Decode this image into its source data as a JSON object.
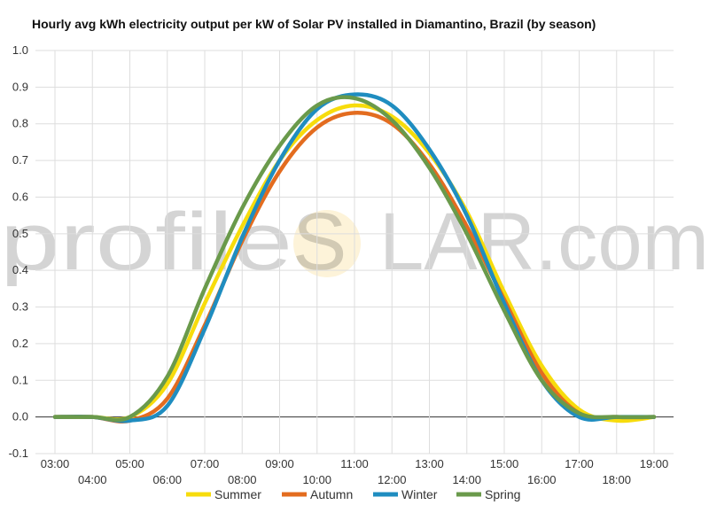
{
  "title": "Hourly avg kWh electricity output per kW of Solar PV installed in Diamantino, Brazil (by season)",
  "watermark": {
    "left": "profile",
    "mid": "S",
    "right": "LAR.com",
    "sun_color": "#fdf3d9"
  },
  "chart_data": {
    "type": "line",
    "title": "Hourly avg kWh electricity output per kW of Solar PV installed in Diamantino, Brazil (by season)",
    "x": [
      "03:00",
      "04:00",
      "05:00",
      "06:00",
      "07:00",
      "08:00",
      "09:00",
      "10:00",
      "11:00",
      "12:00",
      "13:00",
      "14:00",
      "15:00",
      "16:00",
      "17:00",
      "18:00",
      "19:00"
    ],
    "ylim": [
      -0.1,
      1.0
    ],
    "yticks": [
      "-0.1",
      "0.0",
      "0.1",
      "0.2",
      "0.3",
      "0.4",
      "0.5",
      "0.6",
      "0.7",
      "0.8",
      "0.9",
      "1.0"
    ],
    "grid": true,
    "legend_position": "bottom",
    "series": [
      {
        "name": "Summer",
        "color": "#f7dc0c",
        "values": [
          0,
          0,
          0,
          0.09,
          0.31,
          0.52,
          0.7,
          0.81,
          0.85,
          0.82,
          0.72,
          0.56,
          0.34,
          0.14,
          0.02,
          -0.01,
          0
        ]
      },
      {
        "name": "Autumn",
        "color": "#e36c1f",
        "values": [
          0,
          0,
          -0.01,
          0.05,
          0.25,
          0.48,
          0.67,
          0.79,
          0.83,
          0.8,
          0.69,
          0.52,
          0.32,
          0.12,
          0.01,
          0,
          0
        ]
      },
      {
        "name": "Winter",
        "color": "#1f8dc0",
        "values": [
          0,
          0,
          -0.01,
          0.03,
          0.24,
          0.49,
          0.7,
          0.84,
          0.88,
          0.85,
          0.73,
          0.55,
          0.31,
          0.1,
          0,
          0,
          0
        ]
      },
      {
        "name": "Spring",
        "color": "#6a9a4b",
        "values": [
          0,
          0,
          0,
          0.11,
          0.35,
          0.57,
          0.74,
          0.85,
          0.87,
          0.81,
          0.68,
          0.5,
          0.29,
          0.1,
          0.01,
          0,
          0
        ]
      }
    ]
  }
}
